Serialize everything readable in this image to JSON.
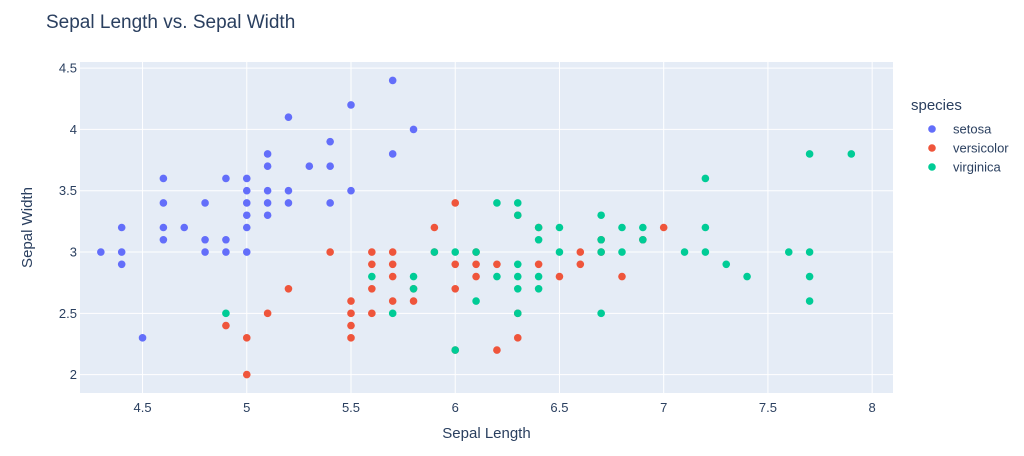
{
  "colors": {
    "plot_bg": "#E5ECF6",
    "grid": "#ffffff",
    "text": "#2a3f5f"
  },
  "chart_data": {
    "type": "scatter",
    "title": "Sepal Length vs. Sepal Width",
    "xlabel": "Sepal Length",
    "ylabel": "Sepal Width",
    "xlim": [
      4.2,
      8.1
    ],
    "ylim": [
      1.85,
      4.55
    ],
    "xticks": [
      4.5,
      5,
      5.5,
      6,
      6.5,
      7,
      7.5,
      8
    ],
    "yticks": [
      2,
      2.5,
      3,
      3.5,
      4,
      4.5
    ],
    "grid": true,
    "legend": {
      "title": "species",
      "position": "right"
    },
    "series": [
      {
        "name": "setosa",
        "color": "#636EFA",
        "points": [
          [
            4.3,
            3.0
          ],
          [
            4.4,
            2.9
          ],
          [
            4.4,
            3.0
          ],
          [
            4.4,
            3.2
          ],
          [
            4.5,
            2.3
          ],
          [
            4.6,
            3.1
          ],
          [
            4.6,
            3.2
          ],
          [
            4.6,
            3.4
          ],
          [
            4.6,
            3.6
          ],
          [
            4.7,
            3.2
          ],
          [
            4.8,
            3.0
          ],
          [
            4.8,
            3.1
          ],
          [
            4.8,
            3.4
          ],
          [
            4.9,
            3.0
          ],
          [
            4.9,
            3.1
          ],
          [
            4.9,
            3.6
          ],
          [
            5.0,
            3.0
          ],
          [
            5.0,
            3.2
          ],
          [
            5.0,
            3.3
          ],
          [
            5.0,
            3.4
          ],
          [
            5.0,
            3.5
          ],
          [
            5.0,
            3.6
          ],
          [
            5.1,
            3.3
          ],
          [
            5.1,
            3.4
          ],
          [
            5.1,
            3.5
          ],
          [
            5.1,
            3.7
          ],
          [
            5.1,
            3.8
          ],
          [
            5.2,
            3.4
          ],
          [
            5.2,
            3.5
          ],
          [
            5.2,
            4.1
          ],
          [
            5.3,
            3.7
          ],
          [
            5.4,
            3.4
          ],
          [
            5.4,
            3.7
          ],
          [
            5.4,
            3.9
          ],
          [
            5.5,
            3.5
          ],
          [
            5.5,
            4.2
          ],
          [
            5.7,
            3.8
          ],
          [
            5.7,
            4.4
          ],
          [
            5.8,
            4.0
          ]
        ]
      },
      {
        "name": "versicolor",
        "color": "#EF553B",
        "points": [
          [
            4.9,
            2.4
          ],
          [
            5.0,
            2.0
          ],
          [
            5.0,
            2.3
          ],
          [
            5.1,
            2.5
          ],
          [
            5.2,
            2.7
          ],
          [
            5.4,
            3.0
          ],
          [
            5.5,
            2.3
          ],
          [
            5.5,
            2.4
          ],
          [
            5.5,
            2.5
          ],
          [
            5.5,
            2.6
          ],
          [
            5.6,
            2.5
          ],
          [
            5.6,
            2.7
          ],
          [
            5.6,
            2.9
          ],
          [
            5.6,
            3.0
          ],
          [
            5.7,
            2.6
          ],
          [
            5.7,
            2.8
          ],
          [
            5.7,
            2.9
          ],
          [
            5.7,
            3.0
          ],
          [
            5.8,
            2.6
          ],
          [
            5.8,
            2.7
          ],
          [
            5.9,
            3.0
          ],
          [
            5.9,
            3.2
          ],
          [
            6.0,
            2.2
          ],
          [
            6.0,
            2.7
          ],
          [
            6.0,
            2.9
          ],
          [
            6.0,
            3.4
          ],
          [
            6.1,
            2.8
          ],
          [
            6.1,
            2.9
          ],
          [
            6.1,
            3.0
          ],
          [
            6.2,
            2.2
          ],
          [
            6.2,
            2.9
          ],
          [
            6.3,
            2.3
          ],
          [
            6.3,
            2.5
          ],
          [
            6.3,
            3.3
          ],
          [
            6.4,
            2.9
          ],
          [
            6.4,
            3.2
          ],
          [
            6.5,
            2.8
          ],
          [
            6.6,
            2.9
          ],
          [
            6.6,
            3.0
          ],
          [
            6.7,
            3.0
          ],
          [
            6.7,
            3.1
          ],
          [
            6.8,
            2.8
          ],
          [
            6.9,
            3.1
          ],
          [
            7.0,
            3.2
          ]
        ]
      },
      {
        "name": "virginica",
        "color": "#00CC96",
        "points": [
          [
            4.9,
            2.5
          ],
          [
            5.6,
            2.8
          ],
          [
            5.7,
            2.5
          ],
          [
            5.8,
            2.7
          ],
          [
            5.8,
            2.8
          ],
          [
            5.9,
            3.0
          ],
          [
            6.0,
            2.2
          ],
          [
            6.0,
            3.0
          ],
          [
            6.1,
            2.6
          ],
          [
            6.1,
            3.0
          ],
          [
            6.2,
            2.8
          ],
          [
            6.2,
            3.4
          ],
          [
            6.3,
            2.5
          ],
          [
            6.3,
            2.7
          ],
          [
            6.3,
            2.8
          ],
          [
            6.3,
            2.9
          ],
          [
            6.3,
            3.3
          ],
          [
            6.3,
            3.4
          ],
          [
            6.4,
            2.7
          ],
          [
            6.4,
            2.8
          ],
          [
            6.4,
            3.1
          ],
          [
            6.4,
            3.2
          ],
          [
            6.5,
            3.0
          ],
          [
            6.5,
            3.2
          ],
          [
            6.7,
            2.5
          ],
          [
            6.7,
            3.0
          ],
          [
            6.7,
            3.1
          ],
          [
            6.7,
            3.3
          ],
          [
            6.8,
            3.0
          ],
          [
            6.8,
            3.2
          ],
          [
            6.9,
            3.1
          ],
          [
            6.9,
            3.2
          ],
          [
            7.1,
            3.0
          ],
          [
            7.2,
            3.0
          ],
          [
            7.2,
            3.2
          ],
          [
            7.2,
            3.6
          ],
          [
            7.3,
            2.9
          ],
          [
            7.4,
            2.8
          ],
          [
            7.6,
            3.0
          ],
          [
            7.7,
            2.6
          ],
          [
            7.7,
            2.8
          ],
          [
            7.7,
            3.0
          ],
          [
            7.7,
            3.8
          ],
          [
            7.9,
            3.8
          ]
        ]
      }
    ]
  }
}
